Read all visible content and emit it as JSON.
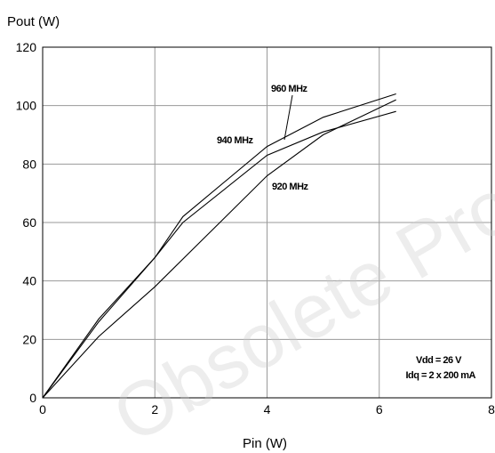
{
  "chart_data": {
    "type": "line",
    "ylabel": "Pout (W)",
    "xlabel": "Pin (W)",
    "xlim": [
      0,
      8
    ],
    "ylim": [
      0,
      120
    ],
    "x_ticks": [
      0,
      2,
      4,
      6,
      8
    ],
    "y_ticks": [
      0,
      20,
      40,
      60,
      80,
      100,
      120
    ],
    "x_tick_labels": [
      "0",
      "2",
      "4",
      "6",
      "8"
    ],
    "y_tick_labels": [
      "0",
      "20",
      "40",
      "60",
      "80",
      "100",
      "120"
    ],
    "grid": true,
    "series": [
      {
        "name": "920 MHz",
        "points": [
          [
            0,
            0
          ],
          [
            1,
            21
          ],
          [
            2,
            38
          ],
          [
            3,
            57
          ],
          [
            4,
            76
          ],
          [
            5,
            90
          ],
          [
            6.3,
            102
          ]
        ]
      },
      {
        "name": "940 MHz",
        "points": [
          [
            0,
            0
          ],
          [
            1,
            27
          ],
          [
            2,
            48
          ],
          [
            2.5,
            62
          ],
          [
            4,
            86
          ],
          [
            5,
            96
          ],
          [
            6.3,
            104
          ]
        ]
      },
      {
        "name": "960 MHz",
        "points": [
          [
            0,
            0
          ],
          [
            1,
            26
          ],
          [
            2,
            48
          ],
          [
            2.5,
            60
          ],
          [
            4,
            83
          ],
          [
            5,
            91
          ],
          [
            6.3,
            98
          ]
        ]
      }
    ],
    "series_labels": [
      "960 MHz",
      "940 MHz",
      "920 MHz"
    ],
    "annotations": [
      "Vdd = 26 V",
      "Idq = 2 x 200 mA"
    ],
    "watermark": "Obsolete Product(s)"
  }
}
